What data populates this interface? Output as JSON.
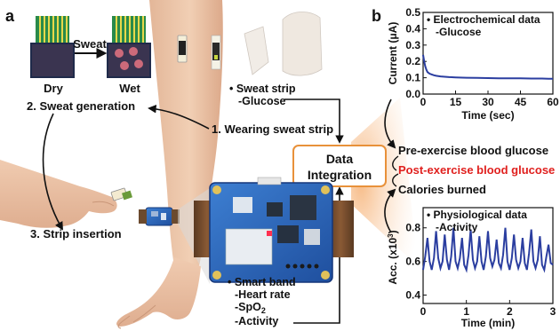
{
  "panel_a": {
    "letter": "a",
    "strip_states": {
      "dry": "Dry",
      "arrow_label": "Sweat",
      "wet": "Wet"
    },
    "steps": {
      "sweat_generation": "2. Sweat generation",
      "wearing_strip": "1. Wearing sweat strip",
      "strip_insertion": "3. Strip insertion"
    },
    "sweat_strip": {
      "title": "• Sweat strip",
      "item": "-Glucose"
    },
    "data_integration": {
      "line1": "Data",
      "line2": "Integration"
    },
    "smart_band": {
      "title": "• Smart band",
      "items": [
        "-Heart rate",
        "-SpO",
        "-Activity"
      ],
      "spo2_subscript": "2"
    }
  },
  "panel_b": {
    "letter": "b",
    "outputs": {
      "pre": "Pre-exercise blood glucose",
      "post": "Post-exercise blood glucose",
      "calories": "Calories burned"
    }
  },
  "colors": {
    "series": "#2b3ea0",
    "post_highlight": "#e0201e",
    "integration_border": "#e8913a",
    "integration_glow": "#f7c79a"
  },
  "chart_data": [
    {
      "type": "line",
      "annotation": [
        "• Electrochemical data",
        "-Glucose"
      ],
      "xlabel": "Time (sec)",
      "ylabel": "Current (μA)",
      "xlim": [
        0,
        60
      ],
      "ylim": [
        0.0,
        0.5
      ],
      "xticks": [
        "0",
        "15",
        "30",
        "45",
        "60"
      ],
      "yticks": [
        "0.0",
        "0.1",
        "0.2",
        "0.3",
        "0.4",
        "0.5"
      ],
      "x": [
        0,
        0.5,
        1,
        1.5,
        2,
        3,
        4,
        5,
        6,
        8,
        10,
        12,
        15,
        20,
        25,
        30,
        35,
        40,
        45,
        50,
        55,
        58,
        60
      ],
      "y": [
        0.24,
        0.2,
        0.17,
        0.15,
        0.135,
        0.125,
        0.12,
        0.115,
        0.112,
        0.108,
        0.106,
        0.104,
        0.102,
        0.1,
        0.099,
        0.098,
        0.097,
        0.096,
        0.096,
        0.095,
        0.095,
        0.094,
        0.094
      ]
    },
    {
      "type": "line",
      "annotation": [
        "• Physiological data",
        "-Activity"
      ],
      "xlabel": "Time (min)",
      "ylabel": "Acc. (x10",
      "ylabel_superscript": "3",
      "ylabel_suffix": ")",
      "xlim": [
        0,
        3
      ],
      "ylim": [
        0.35,
        0.92
      ],
      "xticks": [
        "0",
        "1",
        "2",
        "3"
      ],
      "yticks": [
        "0.4",
        "0.6",
        "0.8"
      ],
      "x": [
        0.0,
        0.05,
        0.1,
        0.15,
        0.2,
        0.25,
        0.3,
        0.35,
        0.4,
        0.45,
        0.5,
        0.55,
        0.6,
        0.65,
        0.7,
        0.75,
        0.8,
        0.85,
        0.9,
        0.95,
        1.0,
        1.05,
        1.1,
        1.15,
        1.2,
        1.25,
        1.3,
        1.35,
        1.4,
        1.45,
        1.5,
        1.55,
        1.6,
        1.65,
        1.7,
        1.75,
        1.8,
        1.85,
        1.9,
        1.95,
        2.0,
        2.05,
        2.1,
        2.15,
        2.2,
        2.25,
        2.3,
        2.35,
        2.4,
        2.45,
        2.5,
        2.55,
        2.6,
        2.65,
        2.7,
        2.75,
        2.8,
        2.85,
        2.9,
        2.95,
        3.0
      ],
      "y": [
        0.55,
        0.63,
        0.74,
        0.6,
        0.55,
        0.62,
        0.78,
        0.62,
        0.56,
        0.6,
        0.76,
        0.61,
        0.55,
        0.63,
        0.8,
        0.6,
        0.56,
        0.62,
        0.74,
        0.58,
        0.55,
        0.64,
        0.79,
        0.61,
        0.56,
        0.6,
        0.75,
        0.6,
        0.55,
        0.63,
        0.78,
        0.62,
        0.57,
        0.61,
        0.73,
        0.59,
        0.56,
        0.64,
        0.8,
        0.6,
        0.55,
        0.62,
        0.76,
        0.61,
        0.56,
        0.6,
        0.74,
        0.59,
        0.55,
        0.65,
        0.79,
        0.6,
        0.56,
        0.61,
        0.75,
        0.58,
        0.55,
        0.63,
        0.7,
        0.59,
        0.58
      ]
    }
  ]
}
